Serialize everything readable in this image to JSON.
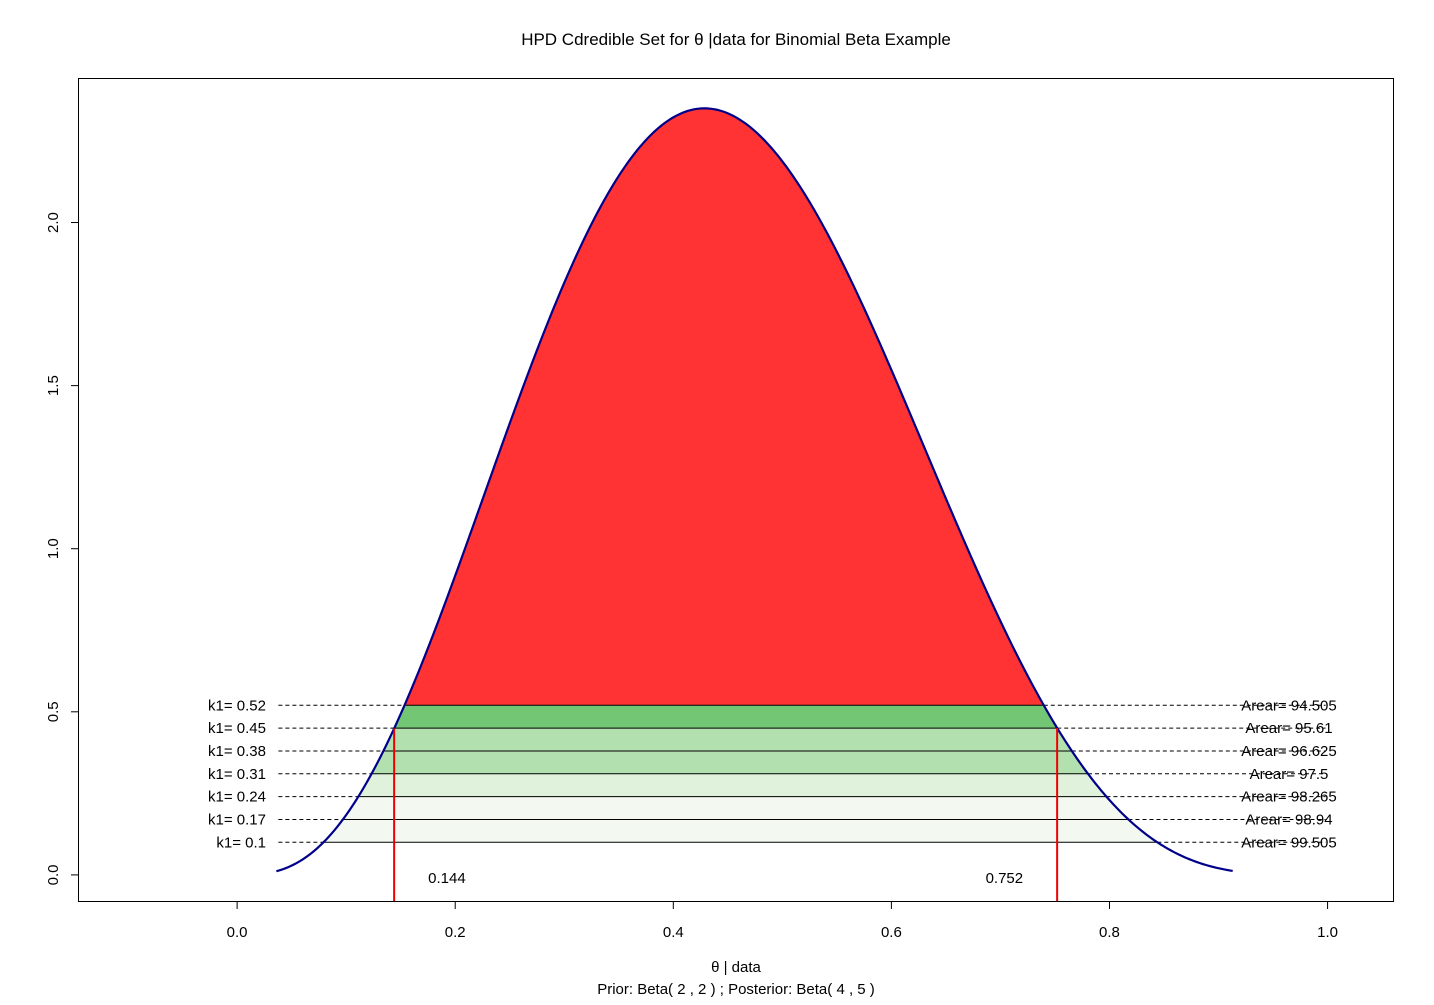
{
  "chart_data": {
    "type": "area",
    "title": "HPD Cdredible Set for θ |data for Binomial Beta Example",
    "xlabel": "θ  | data",
    "sublabel": "Prior: Beta( 2 , 2 ) ; Posterior: Beta( 4 , 5 )",
    "ylabel": "",
    "xlim": [
      -0.145,
      1.06
    ],
    "ylim": [
      -0.08,
      2.44
    ],
    "x_ticks": [
      {
        "value": 0.0,
        "label": "0.0"
      },
      {
        "value": 0.2,
        "label": "0.2"
      },
      {
        "value": 0.4,
        "label": "0.4"
      },
      {
        "value": 0.6,
        "label": "0.6"
      },
      {
        "value": 0.8,
        "label": "0.8"
      },
      {
        "value": 1.0,
        "label": "1.0"
      }
    ],
    "y_ticks": [
      {
        "value": 0.0,
        "label": "0.0"
      },
      {
        "value": 0.5,
        "label": "0.5"
      },
      {
        "value": 1.0,
        "label": "1.0"
      },
      {
        "value": 1.5,
        "label": "1.5"
      },
      {
        "value": 2.0,
        "label": "2.0"
      }
    ],
    "posterior": {
      "alpha": 4,
      "beta": 5
    },
    "curve_range": [
      0.036,
      0.913
    ],
    "curve_color": "#00008B",
    "top_fill_color": "#FF3333",
    "levels": [
      {
        "k": 0.52,
        "k_label": "k1= 0.52",
        "area_label": "Arear= 94.505",
        "color": "#72C674"
      },
      {
        "k": 0.45,
        "k_label": "k1= 0.45",
        "area_label": "Arear= 95.61",
        "color": "#72C674"
      },
      {
        "k": 0.38,
        "k_label": "k1= 0.38",
        "area_label": "Arear= 96.625",
        "color": "#B3E0AF"
      },
      {
        "k": 0.31,
        "k_label": "k1= 0.31",
        "area_label": "Arear= 97.5",
        "color": "#B3E0AF"
      },
      {
        "k": 0.24,
        "k_label": "k1= 0.24",
        "area_label": "Arear= 98.265",
        "color": "#E0F2DC"
      },
      {
        "k": 0.17,
        "k_label": "k1= 0.17",
        "area_label": "Arear= 98.94",
        "color": "#F3F9F1"
      },
      {
        "k": 0.1,
        "k_label": "k1= 0.1",
        "area_label": "Arear= 99.505",
        "color": "#F3F9F1"
      }
    ],
    "hpd_interval": {
      "lower": 0.144,
      "upper": 0.752,
      "lower_label": "0.144",
      "upper_label": "0.752",
      "color": "#EE0000"
    }
  }
}
